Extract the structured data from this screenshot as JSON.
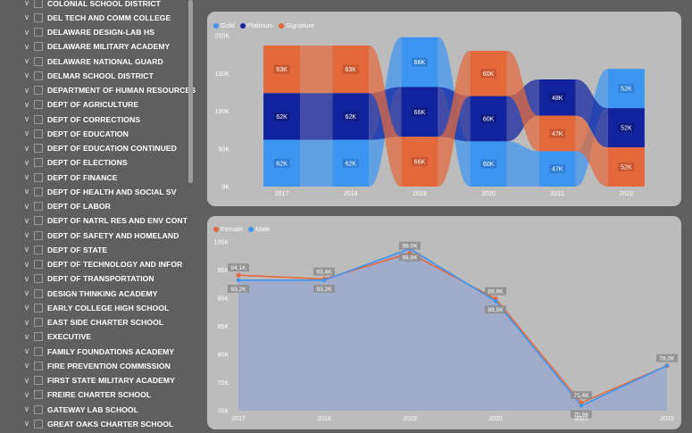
{
  "slicer": {
    "items": [
      "COLONIAL SCHOOL DISTRICT",
      "DEL TECH AND COMM COLLEGE",
      "DELAWARE DESIGN-LAB HS",
      "DELAWARE MILITARY ACADEMY",
      "DELAWARE NATIONAL GUARD",
      "DELMAR SCHOOL DISTRICT",
      "DEPARTMENT OF HUMAN RESOURCES",
      "DEPT OF AGRICULTURE",
      "DEPT OF CORRECTIONS",
      "DEPT OF EDUCATION",
      "DEPT OF EDUCATION CONTINUED",
      "DEPT OF ELECTIONS",
      "DEPT OF FINANCE",
      "DEPT OF HEALTH AND SOCIAL SV",
      "DEPT OF LABOR",
      "DEPT OF NATRL RES AND ENV CONT",
      "DEPT OF SAFETY AND HOMELAND",
      "DEPT OF STATE",
      "DEPT OF TECHNOLOGY AND INFOR",
      "DEPT OF TRANSPORTATION",
      "DESIGN THINKING ACADEMY",
      "EARLY COLLEGE HIGH SCHOOL",
      "EAST SIDE CHARTER SCHOOL",
      "EXECUTIVE",
      "FAMILY FOUNDATIONS ACADEMY",
      "FIRE PREVENTION COMMISSION",
      "FIRST STATE MILITARY ACADEMY",
      "FREIRE CHARTER SCHOOL",
      "GATEWAY LAB SCHOOL",
      "GREAT OAKS CHARTER SCHOOL"
    ]
  },
  "colors": {
    "gold": "#3d95f2",
    "platinum": "#12239e",
    "signature": "#e3693b",
    "female": "#e3693b",
    "male": "#3d95f2",
    "card": "#bcbcbc",
    "background": "#5f5f5f"
  },
  "chart_data": [
    {
      "type": "bar",
      "subtype": "ribbon-stacked",
      "categories": [
        "2017",
        "2018",
        "2019",
        "2020",
        "2021",
        "2022"
      ],
      "ylim": [
        0,
        200000
      ],
      "yticks": [
        "0K",
        "50K",
        "100K",
        "150K",
        "200K"
      ],
      "series": [
        {
          "name": "Gold",
          "values": [
            62000,
            62000,
            66000,
            60000,
            47000,
            52000
          ],
          "labels": [
            "62K",
            "62K",
            "66K",
            "60K",
            "47K",
            "52K"
          ]
        },
        {
          "name": "Platinum",
          "values": [
            62000,
            62000,
            66000,
            60000,
            48000,
            52000
          ],
          "labels": [
            "62K",
            "62K",
            "66K",
            "60K",
            "48K",
            "52K"
          ]
        },
        {
          "name": "Signature",
          "values": [
            63000,
            63000,
            66000,
            60000,
            47000,
            52000
          ],
          "labels": [
            "63K",
            "63K",
            "66K",
            "60K",
            "47K",
            "52K"
          ]
        }
      ],
      "stack_order": [
        [
          "Gold",
          "Platinum",
          "Signature"
        ],
        [
          "Gold",
          "Platinum",
          "Signature"
        ],
        [
          "Signature",
          "Platinum",
          "Gold"
        ],
        [
          "Gold",
          "Platinum",
          "Signature"
        ],
        [
          "Gold",
          "Signature",
          "Platinum"
        ],
        [
          "Signature",
          "Platinum",
          "Gold"
        ]
      ],
      "legend": "top-left"
    },
    {
      "type": "area",
      "categories": [
        "2017",
        "2018",
        "2019",
        "2020",
        "2021",
        "2022"
      ],
      "ylim": [
        70000,
        100000
      ],
      "yticks": [
        "70K",
        "75K",
        "80K",
        "85K",
        "90K",
        "95K",
        "100K"
      ],
      "series": [
        {
          "name": "Female",
          "values": [
            94100,
            93400,
            98000,
            89900,
            71400,
            78000
          ],
          "labels": [
            "94,1K",
            "93,4K",
            "98,0K",
            "89,9K",
            "71,4K",
            "78,0K"
          ]
        },
        {
          "name": "Male",
          "values": [
            93200,
            93200,
            98800,
            89500,
            70900,
            78000
          ],
          "labels": [
            "93,2K",
            "93,2K",
            "98,8K",
            "89,5K",
            "70,9K",
            ""
          ]
        }
      ],
      "legend": "top-left"
    }
  ]
}
